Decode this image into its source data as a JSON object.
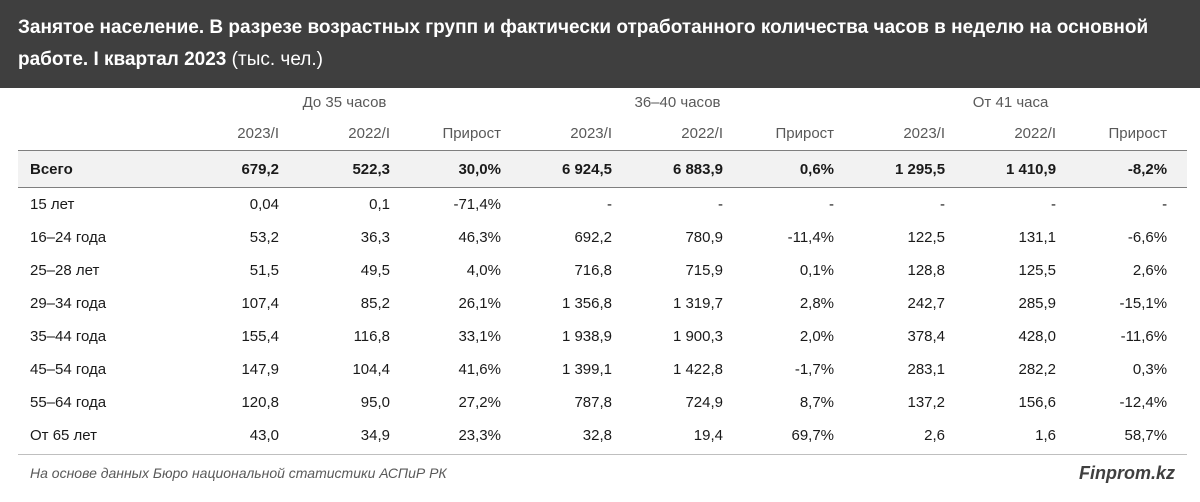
{
  "header": {
    "title": "Занятое население. В разрезе возрастных групп и фактически отработанного количества часов в неделю на основной работе. I квартал 2023",
    "unit": "(тыс. чел.)"
  },
  "table": {
    "groups": [
      "До 35 часов",
      "36–40 часов",
      "От 41 часа"
    ],
    "columns": [
      "2023/I",
      "2022/I",
      "Прирост",
      "2023/I",
      "2022/I",
      "Прирост",
      "2023/I",
      "2022/I",
      "Прирост"
    ],
    "rows": [
      [
        "Всего",
        "679,2",
        "522,3",
        "30,0%",
        "6 924,5",
        "6 883,9",
        "0,6%",
        "1 295,5",
        "1 410,9",
        "-8,2%"
      ],
      [
        "15 лет",
        "0,04",
        "0,1",
        "-71,4%",
        "-",
        "-",
        "-",
        "-",
        "-",
        "-"
      ],
      [
        "16–24 года",
        "53,2",
        "36,3",
        "46,3%",
        "692,2",
        "780,9",
        "-11,4%",
        "122,5",
        "131,1",
        "-6,6%"
      ],
      [
        "25–28 лет",
        "51,5",
        "49,5",
        "4,0%",
        "716,8",
        "715,9",
        "0,1%",
        "128,8",
        "125,5",
        "2,6%"
      ],
      [
        "29–34 года",
        "107,4",
        "85,2",
        "26,1%",
        "1 356,8",
        "1 319,7",
        "2,8%",
        "242,7",
        "285,9",
        "-15,1%"
      ],
      [
        "35–44 года",
        "155,4",
        "116,8",
        "33,1%",
        "1 938,9",
        "1 900,3",
        "2,0%",
        "378,4",
        "428,0",
        "-11,6%"
      ],
      [
        "45–54 года",
        "147,9",
        "104,4",
        "41,6%",
        "1 399,1",
        "1 422,8",
        "-1,7%",
        "283,1",
        "282,2",
        "0,3%"
      ],
      [
        "55–64 года",
        "120,8",
        "95,0",
        "27,2%",
        "787,8",
        "724,9",
        "8,7%",
        "137,2",
        "156,6",
        "-12,4%"
      ],
      [
        "От 65 лет",
        "43,0",
        "34,9",
        "23,3%",
        "32,8",
        "19,4",
        "69,7%",
        "2,6",
        "1,6",
        "58,7%"
      ]
    ]
  },
  "footer": {
    "source": "На основе данных Бюро национальной статистики АСПиР РК",
    "brand": "Finprom.kz"
  }
}
